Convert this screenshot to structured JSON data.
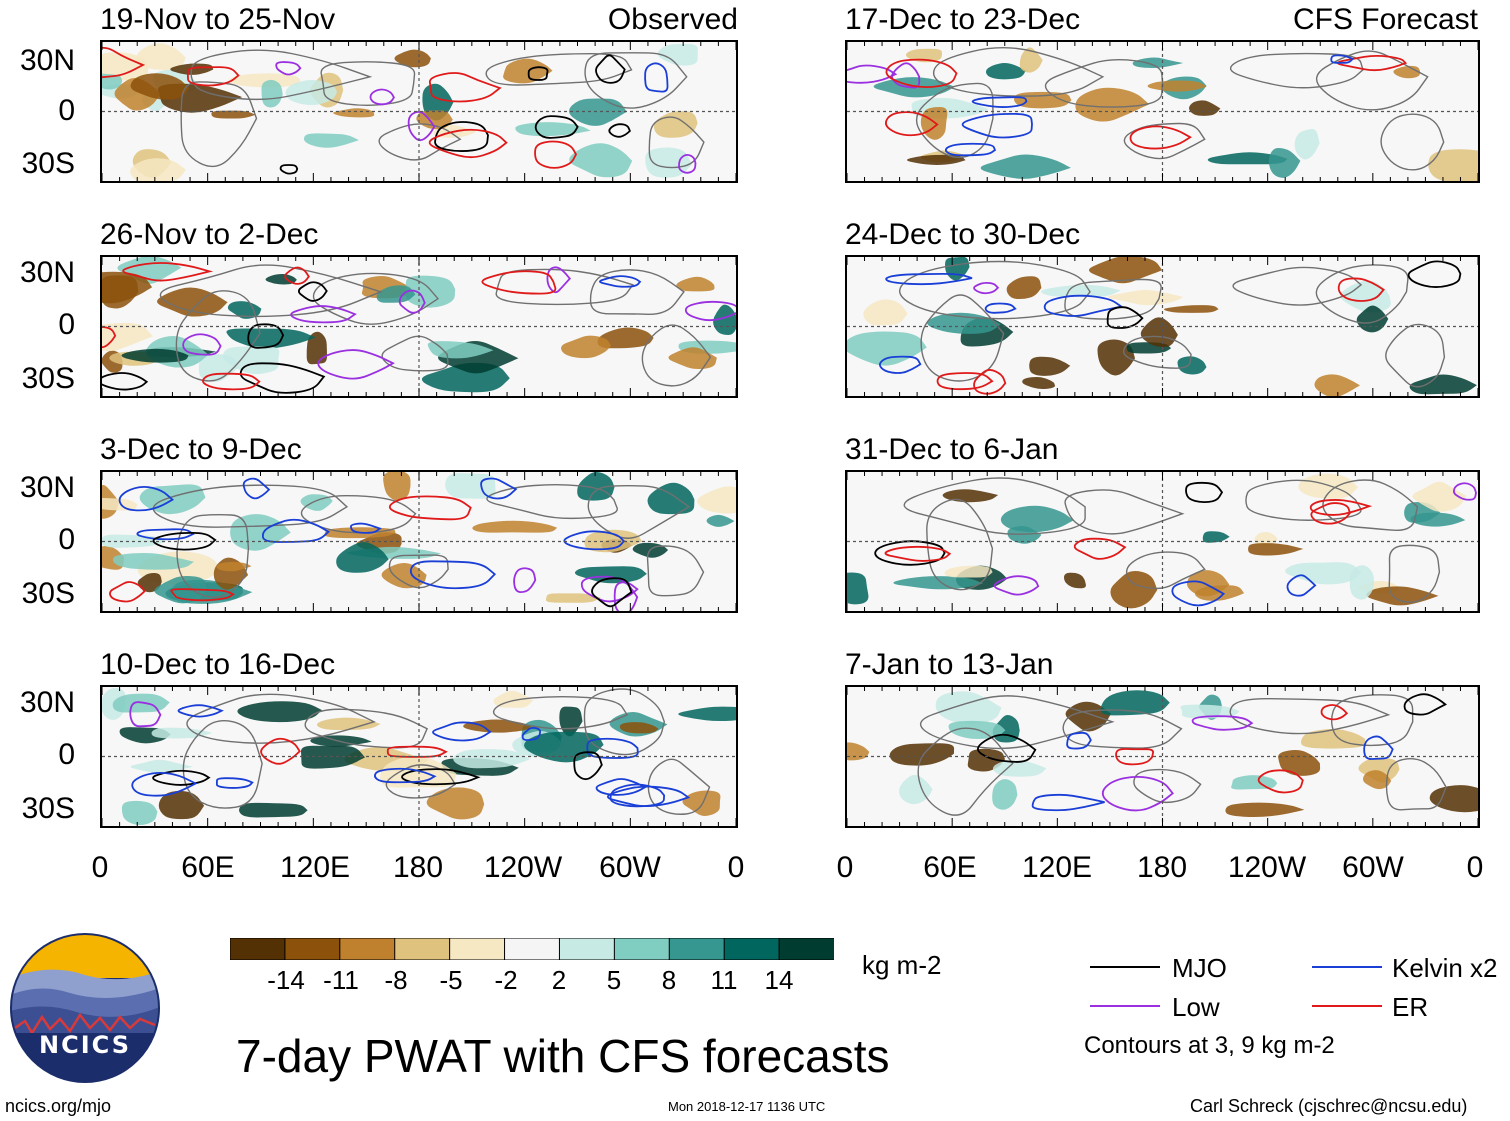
{
  "panels": [
    {
      "title": "19-Nov to 25-Nov",
      "tag": "Observed"
    },
    {
      "title": "26-Nov to 2-Dec",
      "tag": ""
    },
    {
      "title": "3-Dec to 9-Dec",
      "tag": ""
    },
    {
      "title": "10-Dec to 16-Dec",
      "tag": ""
    },
    {
      "title": "17-Dec to 23-Dec",
      "tag": "CFS Forecast"
    },
    {
      "title": "24-Dec to 30-Dec",
      "tag": ""
    },
    {
      "title": "31-Dec to 6-Jan",
      "tag": ""
    },
    {
      "title": "7-Jan to 13-Jan",
      "tag": ""
    }
  ],
  "lat_labels": [
    "30N",
    "0",
    "30S"
  ],
  "lon_labels": [
    "0",
    "60E",
    "120E",
    "180",
    "120W",
    "60W",
    "0"
  ],
  "colorbar": {
    "colors": [
      "#543005",
      "#8c510a",
      "#bf812d",
      "#dfc27d",
      "#f6e8c3",
      "#f5f5f5",
      "#c7eae5",
      "#80cdc1",
      "#35978f",
      "#01665e",
      "#003c30"
    ],
    "labels": [
      "-14",
      "-11",
      "-8",
      "-5",
      "-2",
      "2",
      "5",
      "8",
      "11",
      "14"
    ],
    "units": "kg m-2"
  },
  "legend": {
    "items": [
      {
        "label": "MJO",
        "color": "#000000"
      },
      {
        "label": "Kelvin x2",
        "color": "#1a3fd6"
      },
      {
        "label": "Low",
        "color": "#9b30e0"
      },
      {
        "label": "ER",
        "color": "#e01a1a"
      }
    ],
    "note": "Contours at 3, 9 kg m-2"
  },
  "title": "7-day PWAT with CFS forecasts",
  "logo_text": "NCICS",
  "footer": {
    "url": "ncics.org/mjo",
    "timestamp": "Mon 2018-12-17 1136 UTC",
    "credit": "Carl Schreck (cjschrec@ncsu.edu)"
  }
}
